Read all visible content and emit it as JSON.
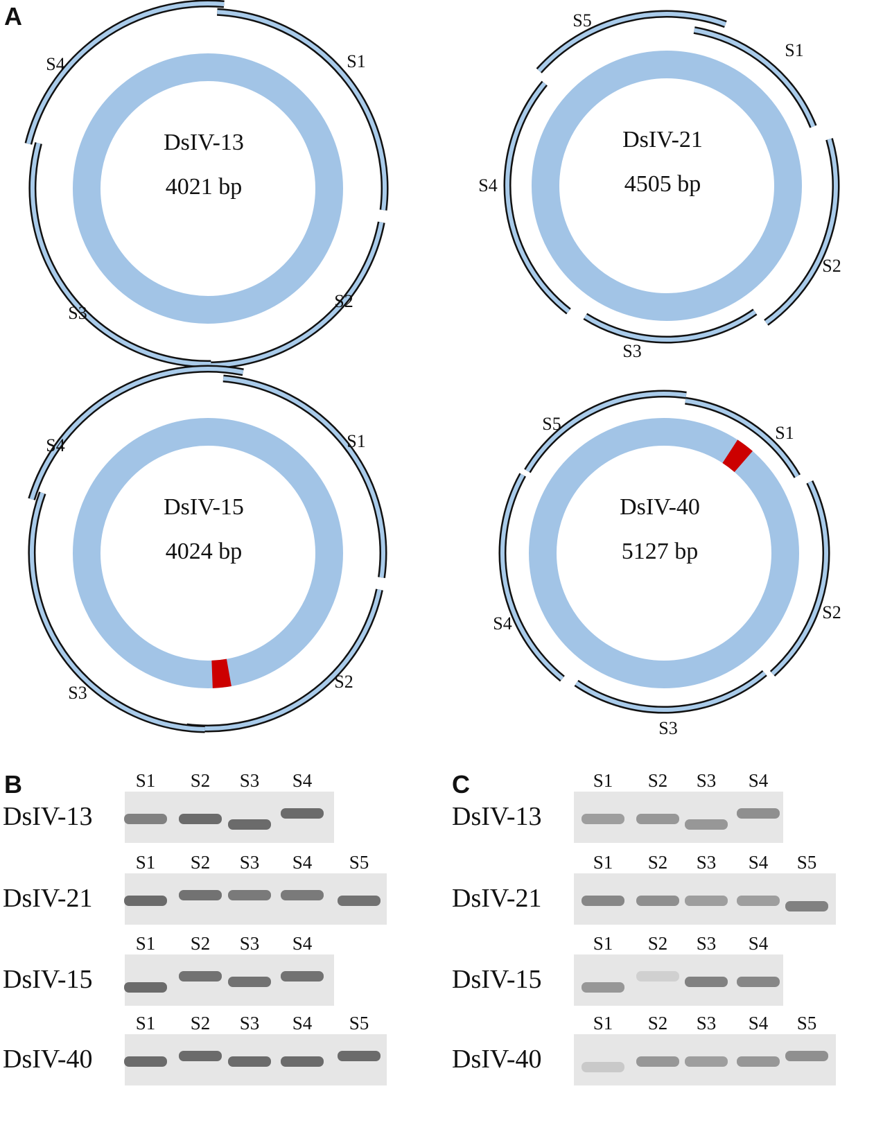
{
  "panels": {
    "A": "A",
    "B": "B",
    "C": "C"
  },
  "colors": {
    "ring": "#a2c4e6",
    "arc_fill": "#a9cbea",
    "arc_stroke": "#111111",
    "mutation": "#cc0000",
    "gel_bg": "#e6e6e6",
    "band": "#555555"
  },
  "plasmids": [
    {
      "name": "DsIV-13",
      "size": "4021 bp",
      "segments": [
        {
          "label": "S1"
        },
        {
          "label": "S2"
        },
        {
          "label": "S3"
        },
        {
          "label": "S4"
        }
      ],
      "mutation": false
    },
    {
      "name": "DsIV-21",
      "size": "4505 bp",
      "segments": [
        {
          "label": "S1"
        },
        {
          "label": "S2"
        },
        {
          "label": "S3"
        },
        {
          "label": "S4"
        },
        {
          "label": "S5"
        }
      ],
      "mutation": false
    },
    {
      "name": "DsIV-15",
      "size": "4024 bp",
      "segments": [
        {
          "label": "S1"
        },
        {
          "label": "S2"
        },
        {
          "label": "S3"
        },
        {
          "label": "S4"
        }
      ],
      "mutation": true
    },
    {
      "name": "DsIV-40",
      "size": "5127 bp",
      "segments": [
        {
          "label": "S1"
        },
        {
          "label": "S2"
        },
        {
          "label": "S3"
        },
        {
          "label": "S4"
        },
        {
          "label": "S5"
        }
      ],
      "mutation": true
    }
  ],
  "gels": {
    "B": [
      {
        "label": "DsIV-13",
        "lanes": [
          {
            "label": "S1",
            "intensity": 0.7,
            "shift": 0
          },
          {
            "label": "S2",
            "intensity": 0.85,
            "shift": 0
          },
          {
            "label": "S3",
            "intensity": 0.85,
            "shift": 1
          },
          {
            "label": "S4",
            "intensity": 0.85,
            "shift": -1
          }
        ]
      },
      {
        "label": "DsIV-21",
        "lanes": [
          {
            "label": "S1",
            "intensity": 0.85,
            "shift": 0
          },
          {
            "label": "S2",
            "intensity": 0.8,
            "shift": -1
          },
          {
            "label": "S3",
            "intensity": 0.75,
            "shift": -1
          },
          {
            "label": "S4",
            "intensity": 0.75,
            "shift": -1
          },
          {
            "label": "S5",
            "intensity": 0.8,
            "shift": 0
          }
        ]
      },
      {
        "label": "DsIV-15",
        "lanes": [
          {
            "label": "S1",
            "intensity": 0.85,
            "shift": 1
          },
          {
            "label": "S2",
            "intensity": 0.8,
            "shift": -1
          },
          {
            "label": "S3",
            "intensity": 0.8,
            "shift": 0
          },
          {
            "label": "S4",
            "intensity": 0.8,
            "shift": -1
          }
        ]
      },
      {
        "label": "DsIV-40",
        "lanes": [
          {
            "label": "S1",
            "intensity": 0.85,
            "shift": 0
          },
          {
            "label": "S2",
            "intensity": 0.85,
            "shift": -1
          },
          {
            "label": "S3",
            "intensity": 0.85,
            "shift": 0
          },
          {
            "label": "S4",
            "intensity": 0.85,
            "shift": 0
          },
          {
            "label": "S5",
            "intensity": 0.85,
            "shift": -1
          }
        ]
      }
    ],
    "C": [
      {
        "label": "DsIV-13",
        "lanes": [
          {
            "label": "S1",
            "intensity": 0.5,
            "shift": 0
          },
          {
            "label": "S2",
            "intensity": 0.55,
            "shift": 0
          },
          {
            "label": "S3",
            "intensity": 0.55,
            "shift": 1
          },
          {
            "label": "S4",
            "intensity": 0.6,
            "shift": -1
          }
        ]
      },
      {
        "label": "DsIV-21",
        "lanes": [
          {
            "label": "S1",
            "intensity": 0.65,
            "shift": 0
          },
          {
            "label": "S2",
            "intensity": 0.6,
            "shift": 0
          },
          {
            "label": "S3",
            "intensity": 0.5,
            "shift": 0
          },
          {
            "label": "S4",
            "intensity": 0.5,
            "shift": 0
          },
          {
            "label": "S5",
            "intensity": 0.7,
            "shift": 1
          }
        ]
      },
      {
        "label": "DsIV-15",
        "lanes": [
          {
            "label": "S1",
            "intensity": 0.55,
            "shift": 1
          },
          {
            "label": "S2",
            "intensity": 0.15,
            "shift": -1
          },
          {
            "label": "S3",
            "intensity": 0.7,
            "shift": 0
          },
          {
            "label": "S4",
            "intensity": 0.65,
            "shift": 0
          }
        ]
      },
      {
        "label": "DsIV-40",
        "lanes": [
          {
            "label": "S1",
            "intensity": 0.2,
            "shift": 1
          },
          {
            "label": "S2",
            "intensity": 0.55,
            "shift": 0
          },
          {
            "label": "S3",
            "intensity": 0.5,
            "shift": 0
          },
          {
            "label": "S4",
            "intensity": 0.55,
            "shift": 0
          },
          {
            "label": "S5",
            "intensity": 0.6,
            "shift": -1
          }
        ]
      }
    ]
  }
}
